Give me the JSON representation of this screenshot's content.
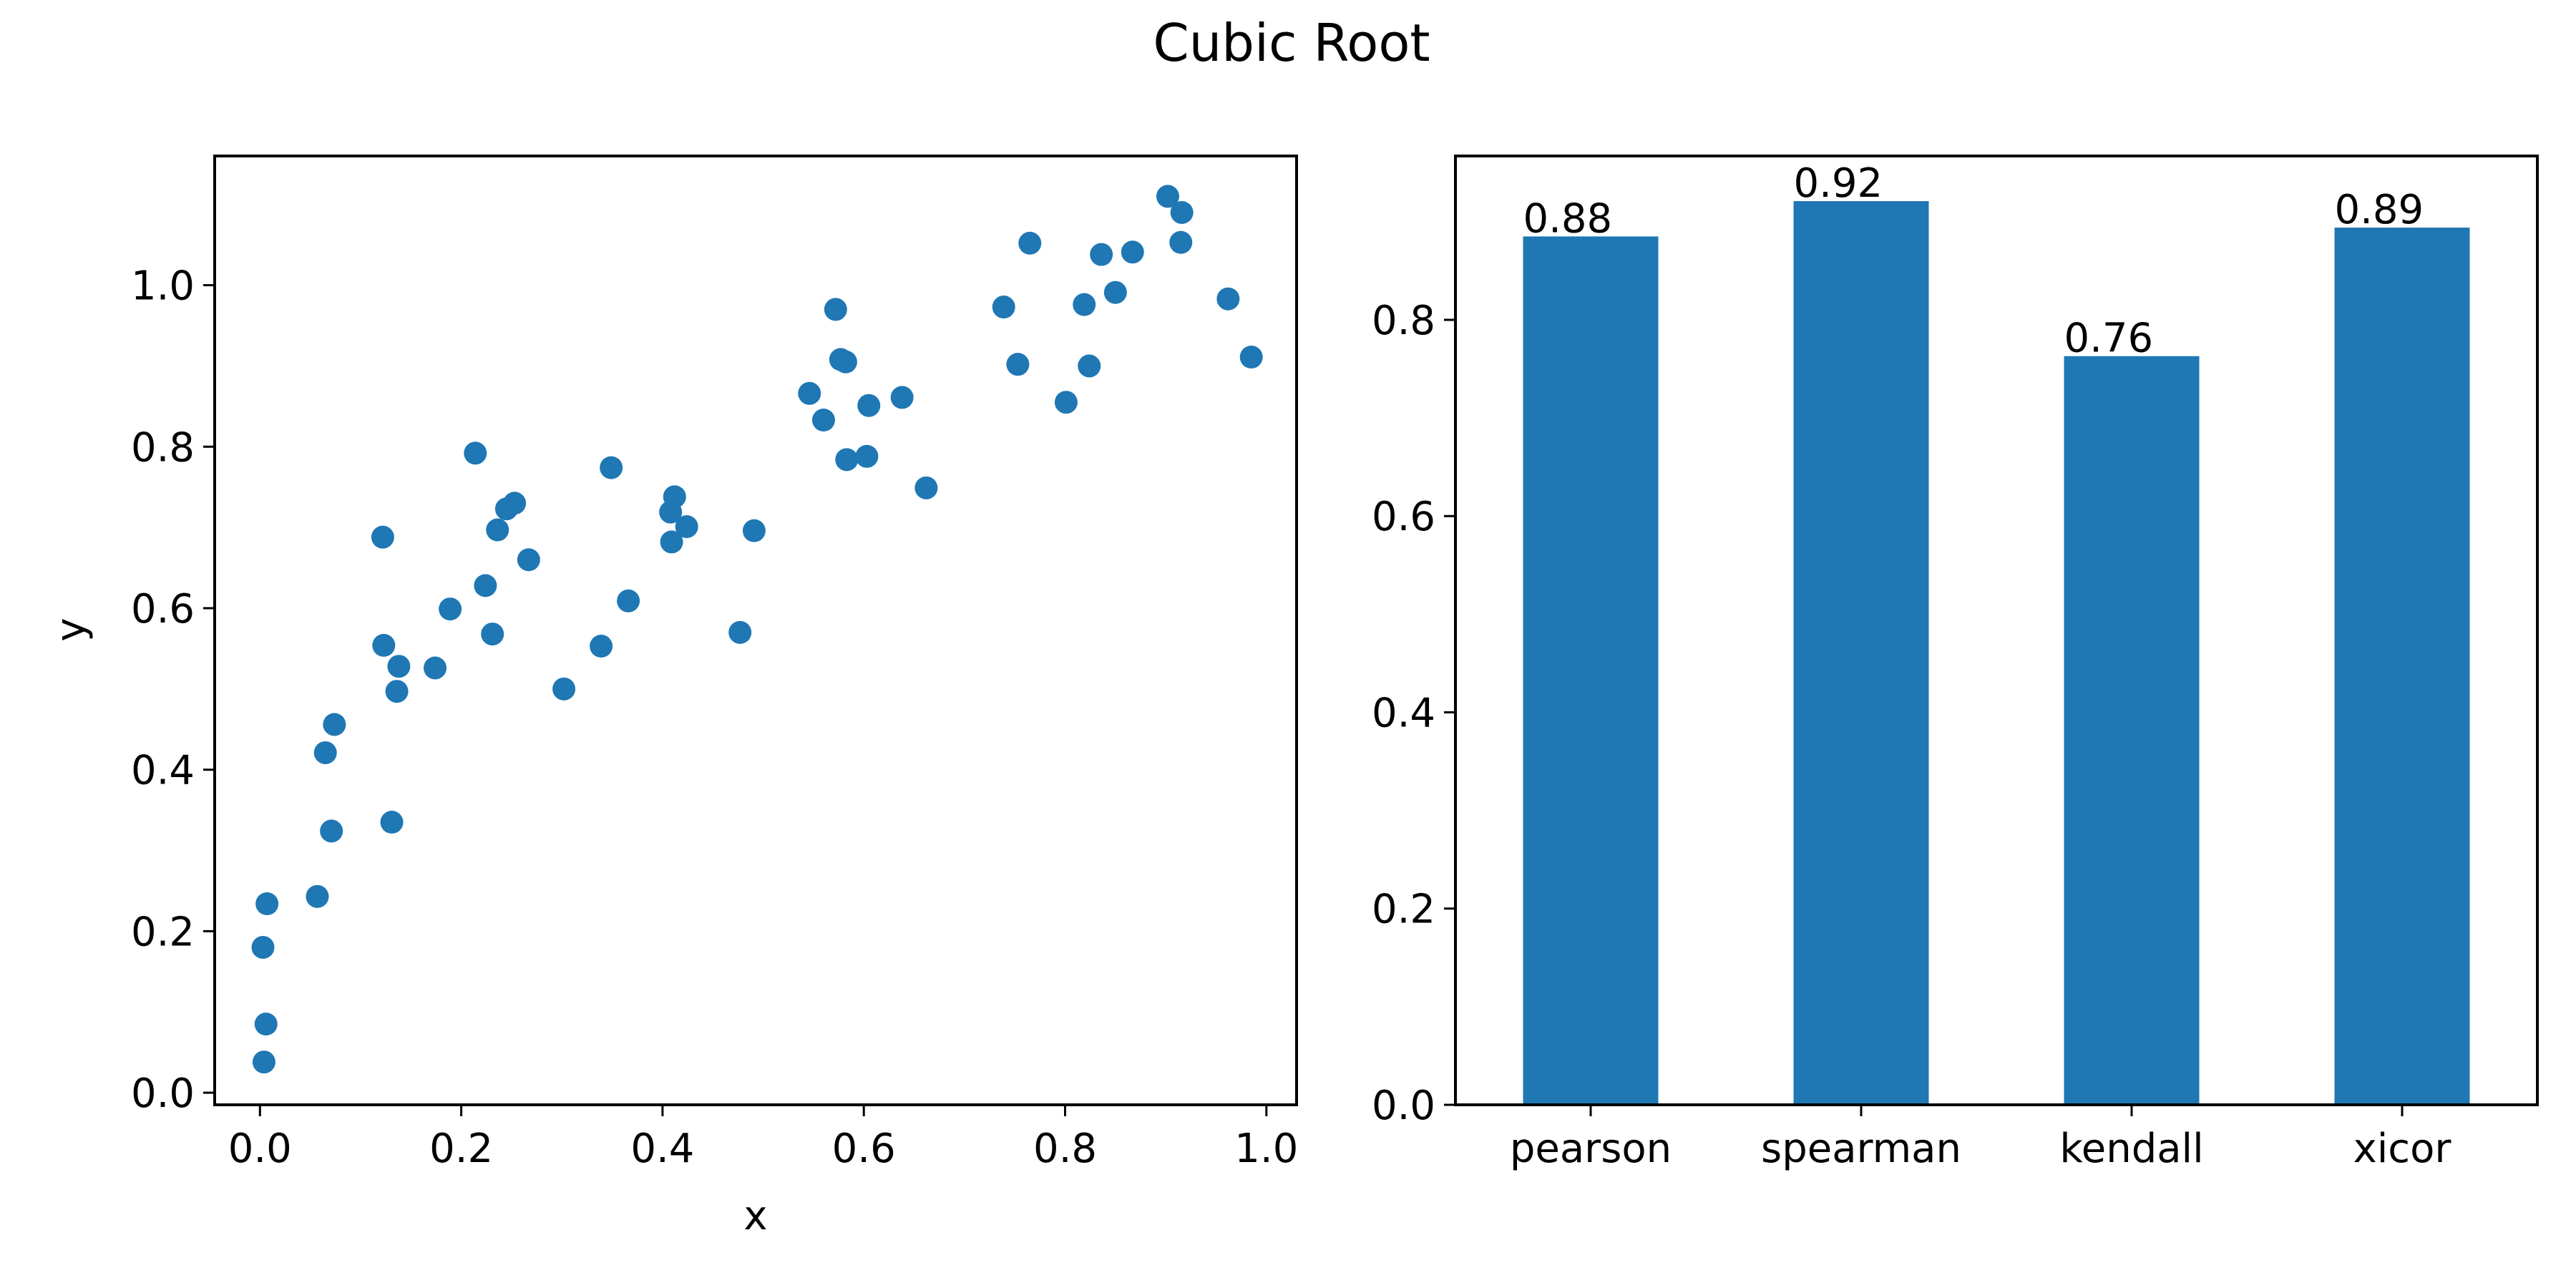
{
  "figure": {
    "title": "Cubic Root"
  },
  "colors": {
    "marker": "#1f77b4",
    "bar": "#1f77b4",
    "axes": "#000000"
  },
  "chart_data": [
    {
      "type": "scatter",
      "title": "",
      "xlabel": "x",
      "ylabel": "y",
      "xlim": [
        -0.045,
        1.03
      ],
      "ylim": [
        -0.015,
        1.16
      ],
      "xticks": [
        0.0,
        0.2,
        0.4,
        0.6,
        0.8,
        1.0
      ],
      "xtick_labels": [
        "0.0",
        "0.2",
        "0.4",
        "0.6",
        "0.8",
        "1.0"
      ],
      "yticks": [
        0.0,
        0.2,
        0.4,
        0.6,
        0.8,
        1.0
      ],
      "ytick_labels": [
        "0.0",
        "0.2",
        "0.4",
        "0.6",
        "0.8",
        "1.0"
      ],
      "grid": false,
      "points": [
        {
          "x": 0.003,
          "y": 0.18
        },
        {
          "x": 0.004,
          "y": 0.038
        },
        {
          "x": 0.006,
          "y": 0.085
        },
        {
          "x": 0.007,
          "y": 0.234
        },
        {
          "x": 0.057,
          "y": 0.243
        },
        {
          "x": 0.065,
          "y": 0.421
        },
        {
          "x": 0.071,
          "y": 0.324
        },
        {
          "x": 0.074,
          "y": 0.456
        },
        {
          "x": 0.122,
          "y": 0.688
        },
        {
          "x": 0.123,
          "y": 0.554
        },
        {
          "x": 0.131,
          "y": 0.335
        },
        {
          "x": 0.136,
          "y": 0.497
        },
        {
          "x": 0.138,
          "y": 0.528
        },
        {
          "x": 0.174,
          "y": 0.526
        },
        {
          "x": 0.189,
          "y": 0.599
        },
        {
          "x": 0.214,
          "y": 0.792
        },
        {
          "x": 0.224,
          "y": 0.628
        },
        {
          "x": 0.231,
          "y": 0.568
        },
        {
          "x": 0.236,
          "y": 0.697
        },
        {
          "x": 0.245,
          "y": 0.723
        },
        {
          "x": 0.253,
          "y": 0.73
        },
        {
          "x": 0.267,
          "y": 0.66
        },
        {
          "x": 0.302,
          "y": 0.5
        },
        {
          "x": 0.339,
          "y": 0.553
        },
        {
          "x": 0.349,
          "y": 0.774
        },
        {
          "x": 0.366,
          "y": 0.609
        },
        {
          "x": 0.408,
          "y": 0.719
        },
        {
          "x": 0.409,
          "y": 0.682
        },
        {
          "x": 0.412,
          "y": 0.738
        },
        {
          "x": 0.424,
          "y": 0.701
        },
        {
          "x": 0.477,
          "y": 0.57
        },
        {
          "x": 0.491,
          "y": 0.696
        },
        {
          "x": 0.546,
          "y": 0.866
        },
        {
          "x": 0.56,
          "y": 0.833
        },
        {
          "x": 0.572,
          "y": 0.97
        },
        {
          "x": 0.577,
          "y": 0.908
        },
        {
          "x": 0.582,
          "y": 0.905
        },
        {
          "x": 0.583,
          "y": 0.784
        },
        {
          "x": 0.603,
          "y": 0.788
        },
        {
          "x": 0.605,
          "y": 0.851
        },
        {
          "x": 0.638,
          "y": 0.861
        },
        {
          "x": 0.662,
          "y": 0.749
        },
        {
          "x": 0.739,
          "y": 0.973
        },
        {
          "x": 0.753,
          "y": 0.902
        },
        {
          "x": 0.765,
          "y": 1.052
        },
        {
          "x": 0.801,
          "y": 0.855
        },
        {
          "x": 0.819,
          "y": 0.976
        },
        {
          "x": 0.824,
          "y": 0.9
        },
        {
          "x": 0.836,
          "y": 1.038
        },
        {
          "x": 0.85,
          "y": 0.991
        },
        {
          "x": 0.867,
          "y": 1.041
        },
        {
          "x": 0.902,
          "y": 1.11
        },
        {
          "x": 0.915,
          "y": 1.053
        },
        {
          "x": 0.916,
          "y": 1.09
        },
        {
          "x": 0.962,
          "y": 0.983
        },
        {
          "x": 0.985,
          "y": 0.911
        }
      ]
    },
    {
      "type": "bar",
      "title": "",
      "xlabel": "",
      "ylabel": "",
      "categories": [
        "pearson",
        "spearman",
        "kendall",
        "xicor"
      ],
      "values": [
        0.885,
        0.921,
        0.763,
        0.894
      ],
      "value_labels": [
        "0.88",
        "0.92",
        "0.76",
        "0.89"
      ],
      "ylim": [
        0.0,
        0.967
      ],
      "yticks": [
        0.0,
        0.2,
        0.4,
        0.6,
        0.8
      ],
      "ytick_labels": [
        "0.0",
        "0.2",
        "0.4",
        "0.6",
        "0.8"
      ],
      "grid": false
    }
  ]
}
